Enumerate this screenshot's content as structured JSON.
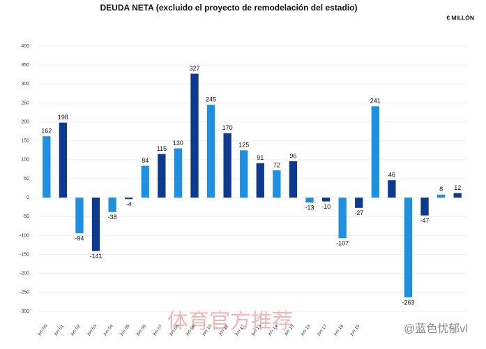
{
  "chart_data": {
    "type": "bar",
    "title": "DEUDA NETA (excluido el proyecto de remodelación del estadio)",
    "unit_label": "€ MILLÓN",
    "categories": [
      "jun 00",
      "jun 01",
      "jun 02",
      "jun 03",
      "jun 04",
      "jun 05",
      "jun 06",
      "jun 07",
      "jun 08",
      "jun 09",
      "jun 10",
      "jun 11",
      "jun 12",
      "jun 13",
      "jun 14",
      "jun 15",
      "jun 16",
      "jun 17",
      "jun 18",
      "jun 19",
      null,
      null,
      null,
      null,
      null,
      null
    ],
    "values": [
      162,
      198,
      -94,
      -141,
      -38,
      -4,
      84,
      115,
      130,
      327,
      245,
      170,
      125,
      91,
      72,
      96,
      -13,
      -10,
      -107,
      -27,
      241,
      46,
      -263,
      -47,
      8,
      12
    ],
    "colors": [
      "#1e8fe1",
      "#0d3a8e",
      "#1e8fe1",
      "#0d3a8e",
      "#1e8fe1",
      "#0d3a8e",
      "#1e8fe1",
      "#0d3a8e",
      "#1e8fe1",
      "#0d3a8e",
      "#1e8fe1",
      "#0d3a8e",
      "#1e8fe1",
      "#0d3a8e",
      "#1e8fe1",
      "#0d3a8e",
      "#1e8fe1",
      "#0d3a8e",
      "#1e8fe1",
      "#0d3a8e",
      "#1e8fe1",
      "#0d3a8e",
      "#1e8fe1",
      "#0d3a8e",
      "#1e8fe1",
      "#0d3a8e"
    ],
    "ylim": [
      -300,
      400
    ],
    "yticks": [
      -300,
      -250,
      -200,
      -150,
      -100,
      -50,
      0,
      50,
      100,
      150,
      200,
      250,
      300,
      350,
      400
    ],
    "grid": true,
    "watermark": [
      "体育官方推荐",
      "@蓝色忧郁vl"
    ]
  }
}
